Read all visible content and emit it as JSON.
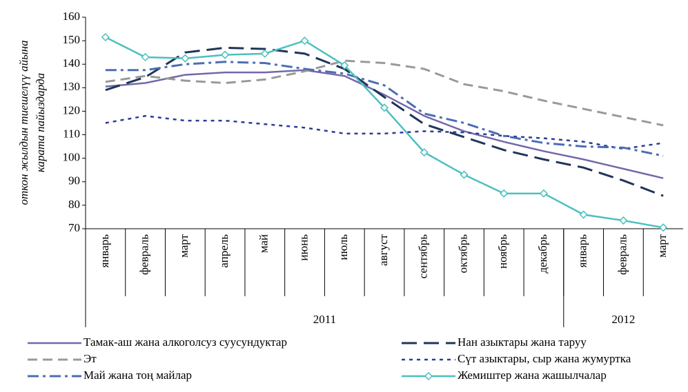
{
  "chart_data": {
    "type": "line",
    "ylabel": [
      "откон жылдын тиешелүү айына",
      "карата пайыздарда"
    ],
    "categories": [
      "январь",
      "февраль",
      "март",
      "апрель",
      "май",
      "июнь",
      "июль",
      "август",
      "сентябрь",
      "октябрь",
      "ноябрь",
      "декабрь",
      "январь",
      "февраль",
      "март"
    ],
    "groups": [
      {
        "label": "2011",
        "count": 12
      },
      {
        "label": "2012",
        "count": 3
      }
    ],
    "ylim": [
      70,
      160
    ],
    "yticks": [
      70,
      80,
      90,
      100,
      110,
      120,
      130,
      140,
      150,
      160
    ],
    "series": [
      {
        "name": "Тамак-аш жана алкоголсуз суусундуктар",
        "color": "#7268a8",
        "values": [
          130.5,
          132,
          135.5,
          136.5,
          136.5,
          137.5,
          135,
          127,
          118,
          111.5,
          107,
          103,
          99.5,
          95.5,
          91.5
        ]
      },
      {
        "name": "Нан азыктары жана таруу",
        "color": "#1f3458",
        "values": [
          129,
          134.5,
          145,
          147,
          146.5,
          144.5,
          138,
          126,
          114.5,
          109,
          103.5,
          99.5,
          96,
          90.5,
          84
        ]
      },
      {
        "name": "Эт",
        "color": "#999999",
        "values": [
          132.5,
          135,
          133,
          132,
          133.5,
          137,
          141.5,
          140.5,
          138,
          131.5,
          128.5,
          124.5,
          121,
          117.5,
          114
        ]
      },
      {
        "name": "Сүт азыктары, сыр жана жумуртка",
        "color": "#2b3a9a",
        "values": [
          115,
          118,
          116,
          116,
          114.5,
          113,
          110.5,
          110.5,
          111.5,
          111,
          109.5,
          108.5,
          107,
          104,
          106.5
        ]
      },
      {
        "name": "Май жана тоң майлар",
        "color": "#4a6db3",
        "values": [
          137.5,
          137.5,
          140,
          141,
          140.5,
          138,
          136,
          131,
          119,
          115,
          109.5,
          106.5,
          105,
          104.5,
          101
        ]
      },
      {
        "name": "Жемиштер жана жашылчалар",
        "color": "#4cbfbf",
        "marker": "diamond",
        "values": [
          151.5,
          143,
          142.5,
          144,
          144.5,
          150,
          139.5,
          121.5,
          102.5,
          93,
          85,
          85,
          76,
          73.5,
          70.5
        ]
      }
    ]
  }
}
